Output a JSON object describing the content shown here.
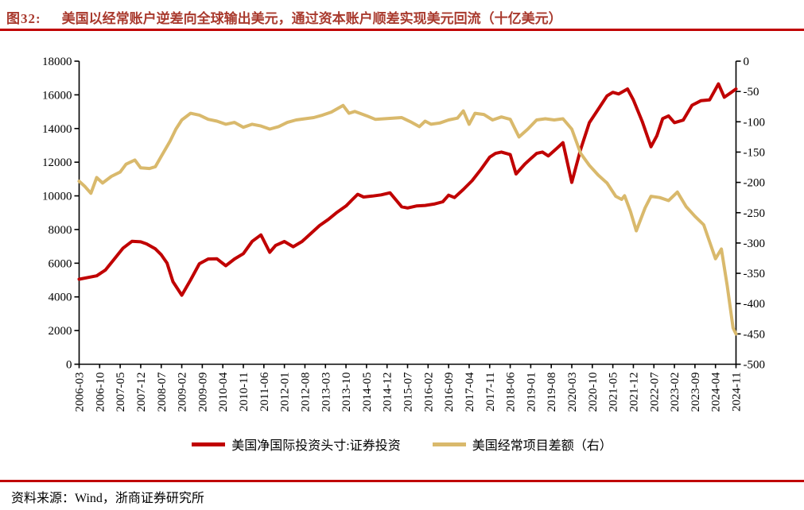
{
  "header": {
    "fig_label": "图32:",
    "title": "美国以经常账户逆差向全球输出美元，通过资本账户顺差实现美元回流（十亿美元）",
    "title_color": "#A93A2E",
    "rule_color": "#C00000"
  },
  "legend": {
    "items": [
      {
        "label": "美国净国际投资头寸:证券投资",
        "color": "#C00000"
      },
      {
        "label": "美国经常项目差额（右）",
        "color": "#D9B96C"
      }
    ]
  },
  "footer": {
    "source": "资料来源：Wind，浙商证券研究所",
    "rule_color": "#C00000"
  },
  "chart_data": {
    "type": "line",
    "title": "美国以经常账户逆差向全球输出美元，通过资本账户顺差实现美元回流（十亿美元）",
    "x_axis": {
      "ticks": [
        "2006-03",
        "2006-10",
        "2007-05",
        "2007-12",
        "2008-07",
        "2009-02",
        "2009-09",
        "2010-04",
        "2010-11",
        "2011-06",
        "2012-01",
        "2012-08",
        "2013-03",
        "2013-10",
        "2014-05",
        "2014-12",
        "2015-07",
        "2016-02",
        "2016-09",
        "2017-04",
        "2017-11",
        "2018-06",
        "2019-01",
        "2019-08",
        "2020-03",
        "2020-10",
        "2021-05",
        "2021-12",
        "2022-07",
        "2023-02",
        "2023-09",
        "2024-04",
        "2024-11"
      ],
      "range": [
        "2006-03",
        "2024-11"
      ]
    },
    "left_axis": {
      "min": 0,
      "max": 18000,
      "ticks": [
        0,
        2000,
        4000,
        6000,
        8000,
        10000,
        12000,
        14000,
        16000,
        18000
      ]
    },
    "right_axis": {
      "min": -500,
      "max": 0,
      "ticks": [
        0,
        -50,
        -100,
        -150,
        -200,
        -250,
        -300,
        -350,
        -400,
        -450,
        -500
      ]
    },
    "grid": false,
    "legend_position": "bottom",
    "series": [
      {
        "name": "美国净国际投资头寸:证券投资",
        "axis": "left",
        "color": "#C00000",
        "points": [
          [
            "2006-03",
            5050
          ],
          [
            "2006-06",
            5150
          ],
          [
            "2006-09",
            5250
          ],
          [
            "2006-12",
            5600
          ],
          [
            "2007-03",
            6250
          ],
          [
            "2007-06",
            6900
          ],
          [
            "2007-09",
            7300
          ],
          [
            "2007-12",
            7270
          ],
          [
            "2008-02",
            7150
          ],
          [
            "2008-05",
            6850
          ],
          [
            "2008-07",
            6500
          ],
          [
            "2008-09",
            6000
          ],
          [
            "2008-11",
            4900
          ],
          [
            "2009-02",
            4100
          ],
          [
            "2009-05",
            5000
          ],
          [
            "2009-08",
            5970
          ],
          [
            "2009-11",
            6250
          ],
          [
            "2010-02",
            6260
          ],
          [
            "2010-05",
            5850
          ],
          [
            "2010-08",
            6250
          ],
          [
            "2010-11",
            6570
          ],
          [
            "2011-02",
            7300
          ],
          [
            "2011-05",
            7680
          ],
          [
            "2011-08",
            6650
          ],
          [
            "2011-10",
            7060
          ],
          [
            "2012-01",
            7290
          ],
          [
            "2012-04",
            6980
          ],
          [
            "2012-07",
            7290
          ],
          [
            "2012-10",
            7760
          ],
          [
            "2013-01",
            8240
          ],
          [
            "2013-04",
            8600
          ],
          [
            "2013-07",
            9030
          ],
          [
            "2013-10",
            9400
          ],
          [
            "2013-12",
            9750
          ],
          [
            "2014-02",
            10090
          ],
          [
            "2014-04",
            9930
          ],
          [
            "2014-07",
            9990
          ],
          [
            "2014-10",
            10060
          ],
          [
            "2015-01",
            10180
          ],
          [
            "2015-05",
            9350
          ],
          [
            "2015-07",
            9280
          ],
          [
            "2015-10",
            9400
          ],
          [
            "2016-01",
            9430
          ],
          [
            "2016-04",
            9510
          ],
          [
            "2016-07",
            9650
          ],
          [
            "2016-09",
            10040
          ],
          [
            "2016-11",
            9900
          ],
          [
            "2017-02",
            10380
          ],
          [
            "2017-05",
            10900
          ],
          [
            "2017-08",
            11570
          ],
          [
            "2017-11",
            12300
          ],
          [
            "2018-01",
            12520
          ],
          [
            "2018-03",
            12600
          ],
          [
            "2018-06",
            12450
          ],
          [
            "2018-08",
            11300
          ],
          [
            "2018-11",
            11890
          ],
          [
            "2019-01",
            12210
          ],
          [
            "2019-03",
            12520
          ],
          [
            "2019-05",
            12600
          ],
          [
            "2019-07",
            12370
          ],
          [
            "2019-10",
            12840
          ],
          [
            "2019-12",
            13160
          ],
          [
            "2020-03",
            10800
          ],
          [
            "2020-06",
            12760
          ],
          [
            "2020-09",
            14350
          ],
          [
            "2020-12",
            15140
          ],
          [
            "2021-03",
            15940
          ],
          [
            "2021-05",
            16150
          ],
          [
            "2021-07",
            16050
          ],
          [
            "2021-10",
            16350
          ],
          [
            "2021-12",
            15700
          ],
          [
            "2022-03",
            14430
          ],
          [
            "2022-06",
            12920
          ],
          [
            "2022-08",
            13560
          ],
          [
            "2022-10",
            14590
          ],
          [
            "2022-12",
            14750
          ],
          [
            "2023-02",
            14350
          ],
          [
            "2023-05",
            14500
          ],
          [
            "2023-08",
            15380
          ],
          [
            "2023-11",
            15650
          ],
          [
            "2024-02",
            15700
          ],
          [
            "2024-05",
            16650
          ],
          [
            "2024-07",
            15860
          ],
          [
            "2024-09",
            16100
          ],
          [
            "2024-11",
            16350
          ]
        ]
      },
      {
        "name": "美国经常项目差额（右）",
        "axis": "right",
        "color": "#D9B96C",
        "points": [
          [
            "2006-03",
            -198
          ],
          [
            "2006-05",
            -207
          ],
          [
            "2006-07",
            -218
          ],
          [
            "2006-09",
            -192
          ],
          [
            "2006-11",
            -201
          ],
          [
            "2007-02",
            -190
          ],
          [
            "2007-05",
            -183
          ],
          [
            "2007-07",
            -170
          ],
          [
            "2007-10",
            -163
          ],
          [
            "2007-12",
            -176
          ],
          [
            "2008-03",
            -177
          ],
          [
            "2008-05",
            -174
          ],
          [
            "2008-07",
            -157
          ],
          [
            "2008-10",
            -132
          ],
          [
            "2008-12",
            -112
          ],
          [
            "2009-02",
            -97
          ],
          [
            "2009-05",
            -86
          ],
          [
            "2009-08",
            -89
          ],
          [
            "2009-11",
            -96
          ],
          [
            "2010-02",
            -99
          ],
          [
            "2010-05",
            -104
          ],
          [
            "2010-08",
            -101
          ],
          [
            "2010-11",
            -109
          ],
          [
            "2011-02",
            -104
          ],
          [
            "2011-05",
            -107
          ],
          [
            "2011-08",
            -112
          ],
          [
            "2011-11",
            -108
          ],
          [
            "2012-02",
            -101
          ],
          [
            "2012-05",
            -97
          ],
          [
            "2012-08",
            -95
          ],
          [
            "2012-11",
            -93
          ],
          [
            "2013-02",
            -89
          ],
          [
            "2013-05",
            -84
          ],
          [
            "2013-09",
            -73
          ],
          [
            "2013-11",
            -86
          ],
          [
            "2014-01",
            -83
          ],
          [
            "2014-05",
            -90
          ],
          [
            "2014-08",
            -96
          ],
          [
            "2014-11",
            -95
          ],
          [
            "2015-02",
            -94
          ],
          [
            "2015-05",
            -93
          ],
          [
            "2015-08",
            -100
          ],
          [
            "2015-11",
            -108
          ],
          [
            "2016-01",
            -99
          ],
          [
            "2016-03",
            -104
          ],
          [
            "2016-06",
            -102
          ],
          [
            "2016-09",
            -97
          ],
          [
            "2016-12",
            -94
          ],
          [
            "2017-02",
            -82
          ],
          [
            "2017-04",
            -104
          ],
          [
            "2017-06",
            -86
          ],
          [
            "2017-09",
            -88
          ],
          [
            "2017-12",
            -97
          ],
          [
            "2018-03",
            -92
          ],
          [
            "2018-06",
            -96
          ],
          [
            "2018-09",
            -125
          ],
          [
            "2018-12",
            -112
          ],
          [
            "2019-03",
            -97
          ],
          [
            "2019-06",
            -95
          ],
          [
            "2019-09",
            -97
          ],
          [
            "2019-12",
            -95
          ],
          [
            "2020-03",
            -112
          ],
          [
            "2020-06",
            -152
          ],
          [
            "2020-09",
            -172
          ],
          [
            "2020-12",
            -188
          ],
          [
            "2021-03",
            -201
          ],
          [
            "2021-06",
            -223
          ],
          [
            "2021-08",
            -228
          ],
          [
            "2021-09",
            -222
          ],
          [
            "2021-11",
            -248
          ],
          [
            "2022-01",
            -280
          ],
          [
            "2022-04",
            -242
          ],
          [
            "2022-06",
            -223
          ],
          [
            "2022-09",
            -225
          ],
          [
            "2022-12",
            -230
          ],
          [
            "2023-03",
            -216
          ],
          [
            "2023-06",
            -240
          ],
          [
            "2023-09",
            -256
          ],
          [
            "2023-12",
            -270
          ],
          [
            "2024-02",
            -298
          ],
          [
            "2024-04",
            -326
          ],
          [
            "2024-06",
            -310
          ],
          [
            "2024-08",
            -370
          ],
          [
            "2024-10",
            -440
          ],
          [
            "2024-11",
            -450
          ]
        ]
      }
    ]
  }
}
